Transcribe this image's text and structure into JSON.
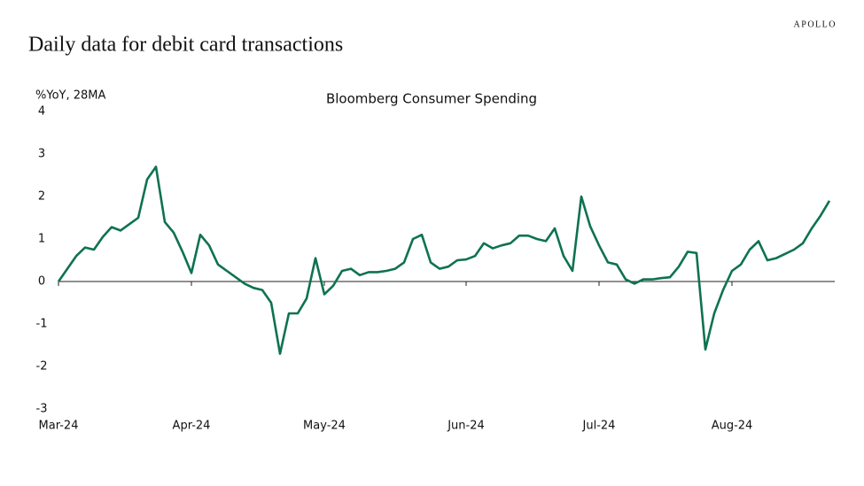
{
  "brand": "APOLLO",
  "chart_data": {
    "type": "line",
    "title": "Daily data for debit card transactions",
    "subtitle": "Bloomberg Consumer Spending",
    "y_label": "%YoY, 28MA",
    "categories": [
      "Mar-24",
      null,
      null,
      null,
      null,
      null,
      null,
      null,
      null,
      null,
      null,
      null,
      null,
      null,
      null,
      "Apr-24",
      null,
      null,
      null,
      null,
      null,
      null,
      null,
      null,
      null,
      null,
      null,
      null,
      null,
      null,
      "May-24",
      null,
      null,
      null,
      null,
      null,
      null,
      null,
      null,
      null,
      null,
      null,
      null,
      null,
      null,
      null,
      "Jun-24",
      null,
      null,
      null,
      null,
      null,
      null,
      null,
      null,
      null,
      null,
      null,
      null,
      null,
      null,
      "Jul-24",
      null,
      null,
      null,
      null,
      null,
      null,
      null,
      null,
      null,
      null,
      null,
      null,
      null,
      null,
      "Aug-24",
      null,
      null,
      null,
      null,
      null,
      null,
      null,
      null,
      null,
      null,
      null
    ],
    "series": [
      {
        "name": "Bloomberg Consumer Spending",
        "color": "#0e7252",
        "values": [
          0,
          0.3,
          0.6,
          0.8,
          0.75,
          1.05,
          1.28,
          1.2,
          1.35,
          1.5,
          2.4,
          2.7,
          1.4,
          1.15,
          0.7,
          0.2,
          1.1,
          0.85,
          0.4,
          0.25,
          0.1,
          -0.05,
          -0.15,
          -0.2,
          -0.5,
          -1.7,
          -0.75,
          -0.75,
          -0.4,
          0.55,
          -0.3,
          -0.1,
          0.25,
          0.3,
          0.15,
          0.22,
          0.22,
          0.25,
          0.3,
          0.45,
          1.0,
          1.1,
          0.45,
          0.3,
          0.35,
          0.5,
          0.52,
          0.6,
          0.9,
          0.78,
          0.85,
          0.9,
          1.08,
          1.08,
          1.0,
          0.95,
          1.25,
          0.6,
          0.25,
          2.0,
          1.3,
          0.85,
          0.45,
          0.4,
          0.05,
          -0.05,
          0.05,
          0.05,
          0.08,
          0.1,
          0.35,
          0.7,
          0.67,
          -1.6,
          -0.75,
          -0.2,
          0.25,
          0.4,
          0.75,
          0.95,
          0.5,
          0.55,
          0.65,
          0.75,
          0.9,
          1.25,
          1.55,
          1.9
        ]
      }
    ],
    "ylim": [
      -3,
      4
    ],
    "yticks": [
      -3,
      -2,
      -1,
      0,
      1,
      2,
      3,
      4
    ],
    "grid": false
  }
}
